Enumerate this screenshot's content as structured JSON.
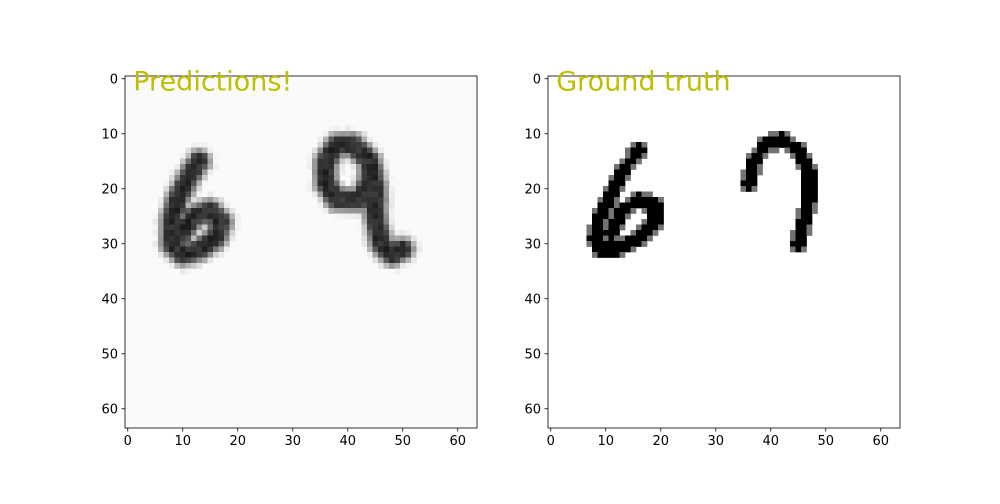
{
  "chart_data": [
    {
      "type": "heatmap",
      "title": "",
      "annotation": "Predictions!",
      "annotation_color": "#bfbf00",
      "colormap": "gray_r",
      "image_size": [
        64,
        64
      ],
      "xlim": [
        -0.5,
        63.5
      ],
      "ylim": [
        63.5,
        -0.5
      ],
      "xticks": [
        0,
        10,
        20,
        30,
        40,
        50,
        60
      ],
      "yticks": [
        0,
        10,
        20,
        30,
        40,
        50,
        60
      ],
      "xticklabels": [
        "0",
        "10",
        "20",
        "30",
        "40",
        "50",
        "60"
      ],
      "yticklabels": [
        "0",
        "10",
        "20",
        "30",
        "40",
        "50",
        "60"
      ],
      "background_level": 0.02,
      "digits": [
        {
          "label": "6",
          "blur": true,
          "strokes": [
            [
              [
                13,
                15
              ],
              [
                11,
                18
              ],
              [
                9,
                22
              ],
              [
                8,
                26
              ],
              [
                8,
                30
              ],
              [
                10,
                32
              ],
              [
                13,
                31
              ],
              [
                16,
                29
              ],
              [
                17,
                26
              ],
              [
                15,
                24
              ],
              [
                12,
                25
              ],
              [
                10,
                28
              ]
            ]
          ]
        },
        {
          "label": "9",
          "blur": true,
          "strokes": [
            [
              [
                44,
                15
              ],
              [
                41,
                12
              ],
              [
                38,
                12
              ],
              [
                36,
                15
              ],
              [
                36,
                19
              ],
              [
                38,
                22
              ],
              [
                42,
                22
              ],
              [
                44,
                19
              ],
              [
                44,
                15
              ]
            ],
            [
              [
                44,
                15
              ],
              [
                45,
                20
              ],
              [
                45,
                25
              ],
              [
                46,
                30
              ],
              [
                48,
                32
              ],
              [
                50,
                31
              ]
            ]
          ]
        }
      ]
    },
    {
      "type": "heatmap",
      "title": "",
      "annotation": "Ground truth",
      "annotation_color": "#bfbf00",
      "colormap": "gray_r",
      "image_size": [
        64,
        64
      ],
      "xlim": [
        -0.5,
        63.5
      ],
      "ylim": [
        63.5,
        -0.5
      ],
      "xticks": [
        0,
        10,
        20,
        30,
        40,
        50,
        60
      ],
      "yticks": [
        0,
        10,
        20,
        30,
        40,
        50,
        60
      ],
      "xticklabels": [
        "0",
        "10",
        "20",
        "30",
        "40",
        "50",
        "60"
      ],
      "yticklabels": [
        "0",
        "10",
        "20",
        "30",
        "40",
        "50",
        "60"
      ],
      "background_level": 0,
      "digits": [
        {
          "label": "6",
          "blur": false,
          "strokes": [
            [
              [
                16,
                13
              ],
              [
                13,
                17
              ],
              [
                11,
                21
              ],
              [
                9,
                25
              ],
              [
                8,
                29
              ],
              [
                9,
                31
              ],
              [
                12,
                31
              ],
              [
                16,
                29
              ],
              [
                19,
                26
              ],
              [
                19,
                23
              ],
              [
                16,
                22
              ],
              [
                13,
                24
              ],
              [
                11,
                28
              ]
            ]
          ]
        },
        {
          "label": "?",
          "blur": false,
          "strokes": [
            [
              [
                36,
                19
              ],
              [
                37,
                15
              ],
              [
                39,
                12
              ],
              [
                42,
                11
              ],
              [
                45,
                13
              ],
              [
                47,
                17
              ],
              [
                47,
                22
              ],
              [
                46,
                26
              ],
              [
                45,
                30
              ]
            ]
          ]
        }
      ]
    }
  ]
}
